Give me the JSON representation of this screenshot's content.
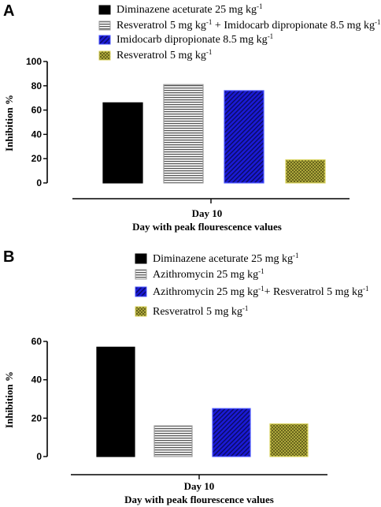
{
  "chart_data": [
    {
      "panel": "A",
      "type": "bar",
      "categories": [
        "Day 10"
      ],
      "xlabel": "Day with peak flourescence values",
      "ylabel": "Inhibition %",
      "ylim": [
        0,
        100
      ],
      "yticks": [
        0,
        20,
        40,
        60,
        80,
        100
      ],
      "series": [
        {
          "name": "Diminazene aceturate 25 mg kg-1",
          "legend": {
            "pre": "Diminazene aceturate 25 mg kg",
            "sup": "-1",
            "post": ""
          },
          "values": [
            66
          ],
          "fill": "#000000",
          "pattern": "solid"
        },
        {
          "name": "Resveratrol 5 mg kg-1 + Imidocarb dipropionate 8.5 mg kg-1",
          "legend": {
            "pre": "Resveratrol 5 mg kg",
            "sup": "-1",
            "mid": " + Imidocarb dipropionate 8.5 mg kg",
            "sup2": "-1"
          },
          "values": [
            81
          ],
          "fill": "#ffffff",
          "pattern": "horizontal-stripes"
        },
        {
          "name": "Imidocarb dipropionate 8.5 mg kg-1",
          "legend": {
            "pre": "Imidocarb dipropionate 8.5 mg kg",
            "sup": "-1",
            "post": ""
          },
          "values": [
            76
          ],
          "fill": "#1a1ad6",
          "pattern": "diagonal-stripes"
        },
        {
          "name": "Resveratrol 5 mg kg-1",
          "legend": {
            "pre": "Resveratrol 5 mg kg",
            "sup": "-1",
            "post": ""
          },
          "values": [
            19
          ],
          "fill": "#b8b23a",
          "pattern": "crosshatch"
        }
      ]
    },
    {
      "panel": "B",
      "type": "bar",
      "categories": [
        "Day 10"
      ],
      "xlabel": "Day with peak flourescence values",
      "ylabel": "Inhibition %",
      "ylim": [
        0,
        60
      ],
      "yticks": [
        0,
        20,
        40,
        60
      ],
      "series": [
        {
          "name": "Diminazene aceturate 25 mg kg-1",
          "legend": {
            "pre": "Diminazene aceturate 25 mg kg",
            "sup": "-1",
            "post": ""
          },
          "values": [
            57
          ],
          "fill": "#000000",
          "pattern": "solid"
        },
        {
          "name": "Azithromycin 25 mg kg-1",
          "legend": {
            "pre": "Azithromycin 25 mg kg",
            "sup": "-1",
            "post": ""
          },
          "values": [
            16
          ],
          "fill": "#ffffff",
          "pattern": "horizontal-stripes"
        },
        {
          "name": "Azithromycin 25 mg kg-1+ Resveratrol 5 mg kg-1",
          "legend": {
            "pre": "Azithromycin 25 mg kg",
            "sup": "-1",
            "mid": "+ Resveratrol 5 mg kg",
            "sup2": "-1"
          },
          "values": [
            25
          ],
          "fill": "#1a1ad6",
          "pattern": "diagonal-stripes"
        },
        {
          "name": "Resveratrol 5 mg kg-1",
          "legend": {
            "pre": "Resveratrol 5 mg kg",
            "sup": "-1",
            "post": ""
          },
          "values": [
            17
          ],
          "fill": "#b8b23a",
          "pattern": "crosshatch"
        }
      ]
    }
  ]
}
